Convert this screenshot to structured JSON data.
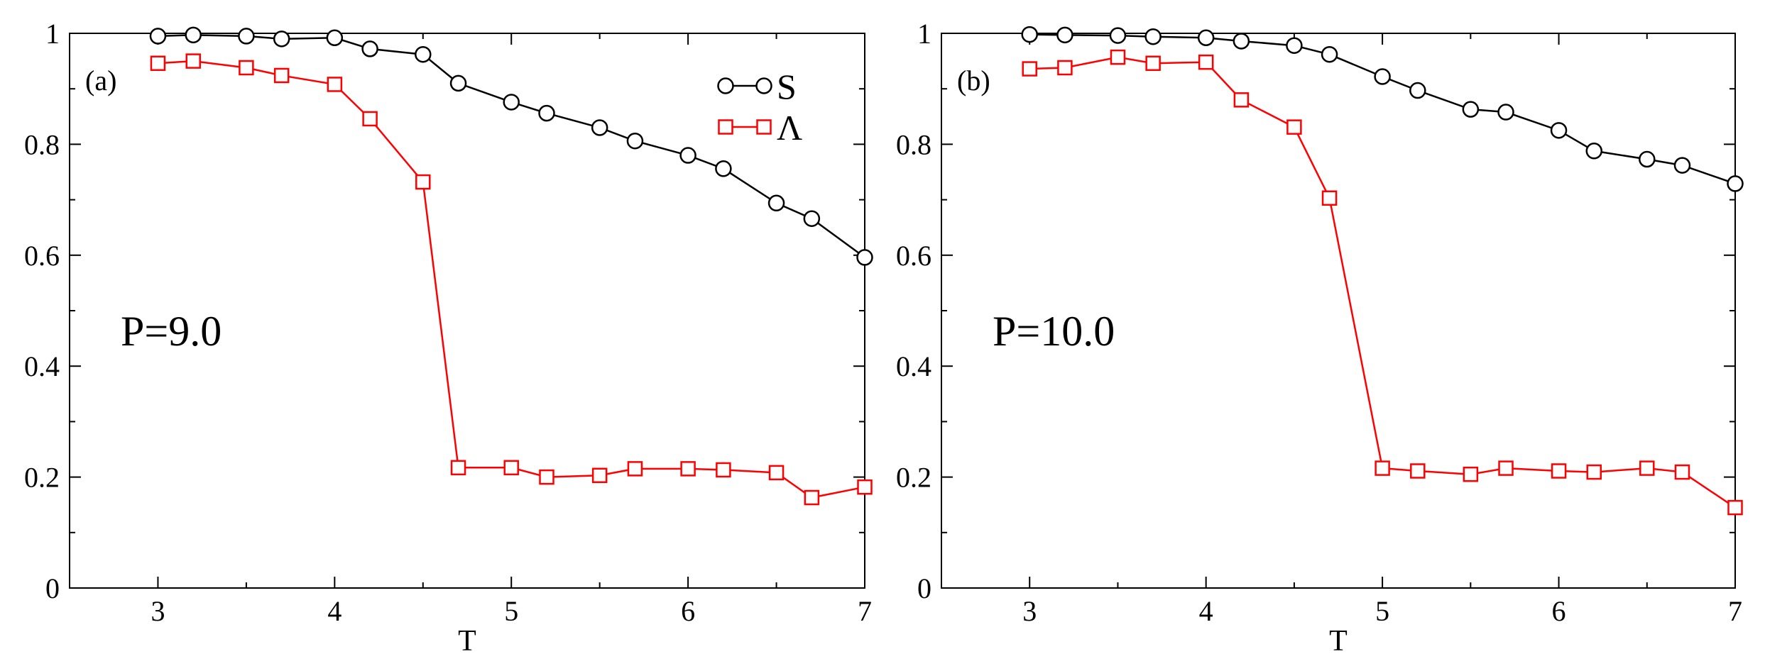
{
  "figure": {
    "description": "Two-panel line chart of S and Λ versus T"
  },
  "chart_data": [
    {
      "type": "line",
      "panel_label": "(a)",
      "annotation": "P=9.0",
      "xlabel": "T",
      "ylabel": "",
      "xlim": [
        2.5,
        7
      ],
      "ylim": [
        0,
        1
      ],
      "xticks": [
        3,
        4,
        5,
        6,
        7
      ],
      "yticks": [
        0,
        0.2,
        0.4,
        0.6,
        0.8,
        1
      ],
      "xtick_labels": [
        "3",
        "4",
        "5",
        "6",
        "7"
      ],
      "ytick_labels": [
        "0",
        "0.2",
        "0.4",
        "0.6",
        "0.8",
        "1"
      ],
      "show_legend": true,
      "legend_position": "top-right",
      "series": [
        {
          "name": "S",
          "marker": "circle",
          "color": "#000000",
          "x": [
            3.0,
            3.2,
            3.5,
            3.7,
            4.0,
            4.2,
            4.5,
            4.7,
            5.0,
            5.2,
            5.5,
            5.7,
            6.0,
            6.2,
            6.5,
            6.7,
            7.0
          ],
          "y": [
            0.995,
            0.997,
            0.995,
            0.99,
            0.992,
            0.972,
            0.962,
            0.91,
            0.876,
            0.856,
            0.83,
            0.806,
            0.78,
            0.756,
            0.694,
            0.666,
            0.596
          ]
        },
        {
          "name": "Λ",
          "marker": "square",
          "color": "#ff0000",
          "x": [
            3.0,
            3.2,
            3.5,
            3.7,
            4.0,
            4.2,
            4.5,
            4.7,
            5.0,
            5.2,
            5.5,
            5.7,
            6.0,
            6.2,
            6.5,
            6.7,
            7.0
          ],
          "y": [
            0.946,
            0.95,
            0.938,
            0.924,
            0.908,
            0.846,
            0.732,
            0.217,
            0.217,
            0.2,
            0.203,
            0.215,
            0.215,
            0.213,
            0.208,
            0.163,
            0.182
          ]
        }
      ]
    },
    {
      "type": "line",
      "panel_label": "(b)",
      "annotation": "P=10.0",
      "xlabel": "T",
      "ylabel": "",
      "xlim": [
        2.5,
        7
      ],
      "ylim": [
        0,
        1
      ],
      "xticks": [
        3,
        4,
        5,
        6,
        7
      ],
      "yticks": [
        0,
        0.2,
        0.4,
        0.6,
        0.8,
        1
      ],
      "xtick_labels": [
        "3",
        "4",
        "5",
        "6",
        "7"
      ],
      "ytick_labels": [
        "0",
        "0.2",
        "0.4",
        "0.6",
        "0.8",
        "1"
      ],
      "show_legend": false,
      "series": [
        {
          "name": "S",
          "marker": "circle",
          "color": "#000000",
          "x": [
            3.0,
            3.2,
            3.5,
            3.7,
            4.0,
            4.2,
            4.5,
            4.7,
            5.0,
            5.2,
            5.5,
            5.7,
            6.0,
            6.2,
            6.5,
            6.7,
            7.0
          ],
          "y": [
            0.998,
            0.997,
            0.996,
            0.994,
            0.992,
            0.986,
            0.978,
            0.962,
            0.922,
            0.897,
            0.863,
            0.858,
            0.825,
            0.788,
            0.773,
            0.762,
            0.729
          ]
        },
        {
          "name": "Λ",
          "marker": "square",
          "color": "#ff0000",
          "x": [
            3.0,
            3.2,
            3.5,
            3.7,
            4.0,
            4.2,
            4.5,
            4.7,
            5.0,
            5.2,
            5.5,
            5.7,
            6.0,
            6.2,
            6.5,
            6.7,
            7.0
          ],
          "y": [
            0.936,
            0.938,
            0.957,
            0.946,
            0.948,
            0.88,
            0.831,
            0.703,
            0.216,
            0.211,
            0.205,
            0.216,
            0.211,
            0.209,
            0.216,
            0.209,
            0.145
          ]
        }
      ]
    }
  ]
}
